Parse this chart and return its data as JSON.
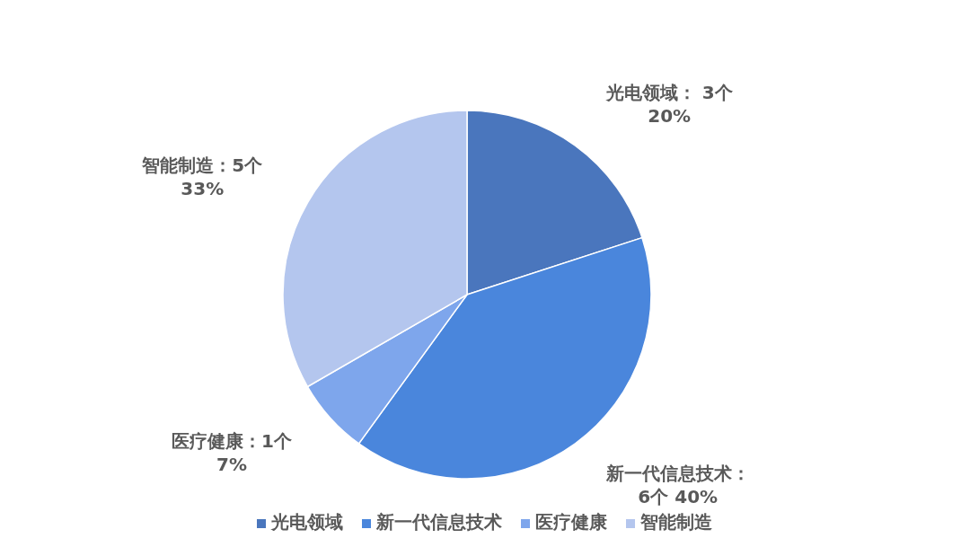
{
  "chart_data": {
    "type": "pie",
    "categories": [
      "光电领域",
      "新一代信息技术",
      "医疗健康",
      "智能制造"
    ],
    "values": [
      3,
      6,
      1,
      5
    ],
    "colors": [
      "#4a76bd",
      "#4a86dc",
      "#7ea6ec",
      "#b4c6ee"
    ],
    "value_labels": [
      "光电领域： 3个\n20%",
      "新一代信息技术：\n6个 40%",
      "医疗健康：1个\n7%",
      "智能制造：5个\n33%"
    ],
    "legend": "bottom"
  }
}
